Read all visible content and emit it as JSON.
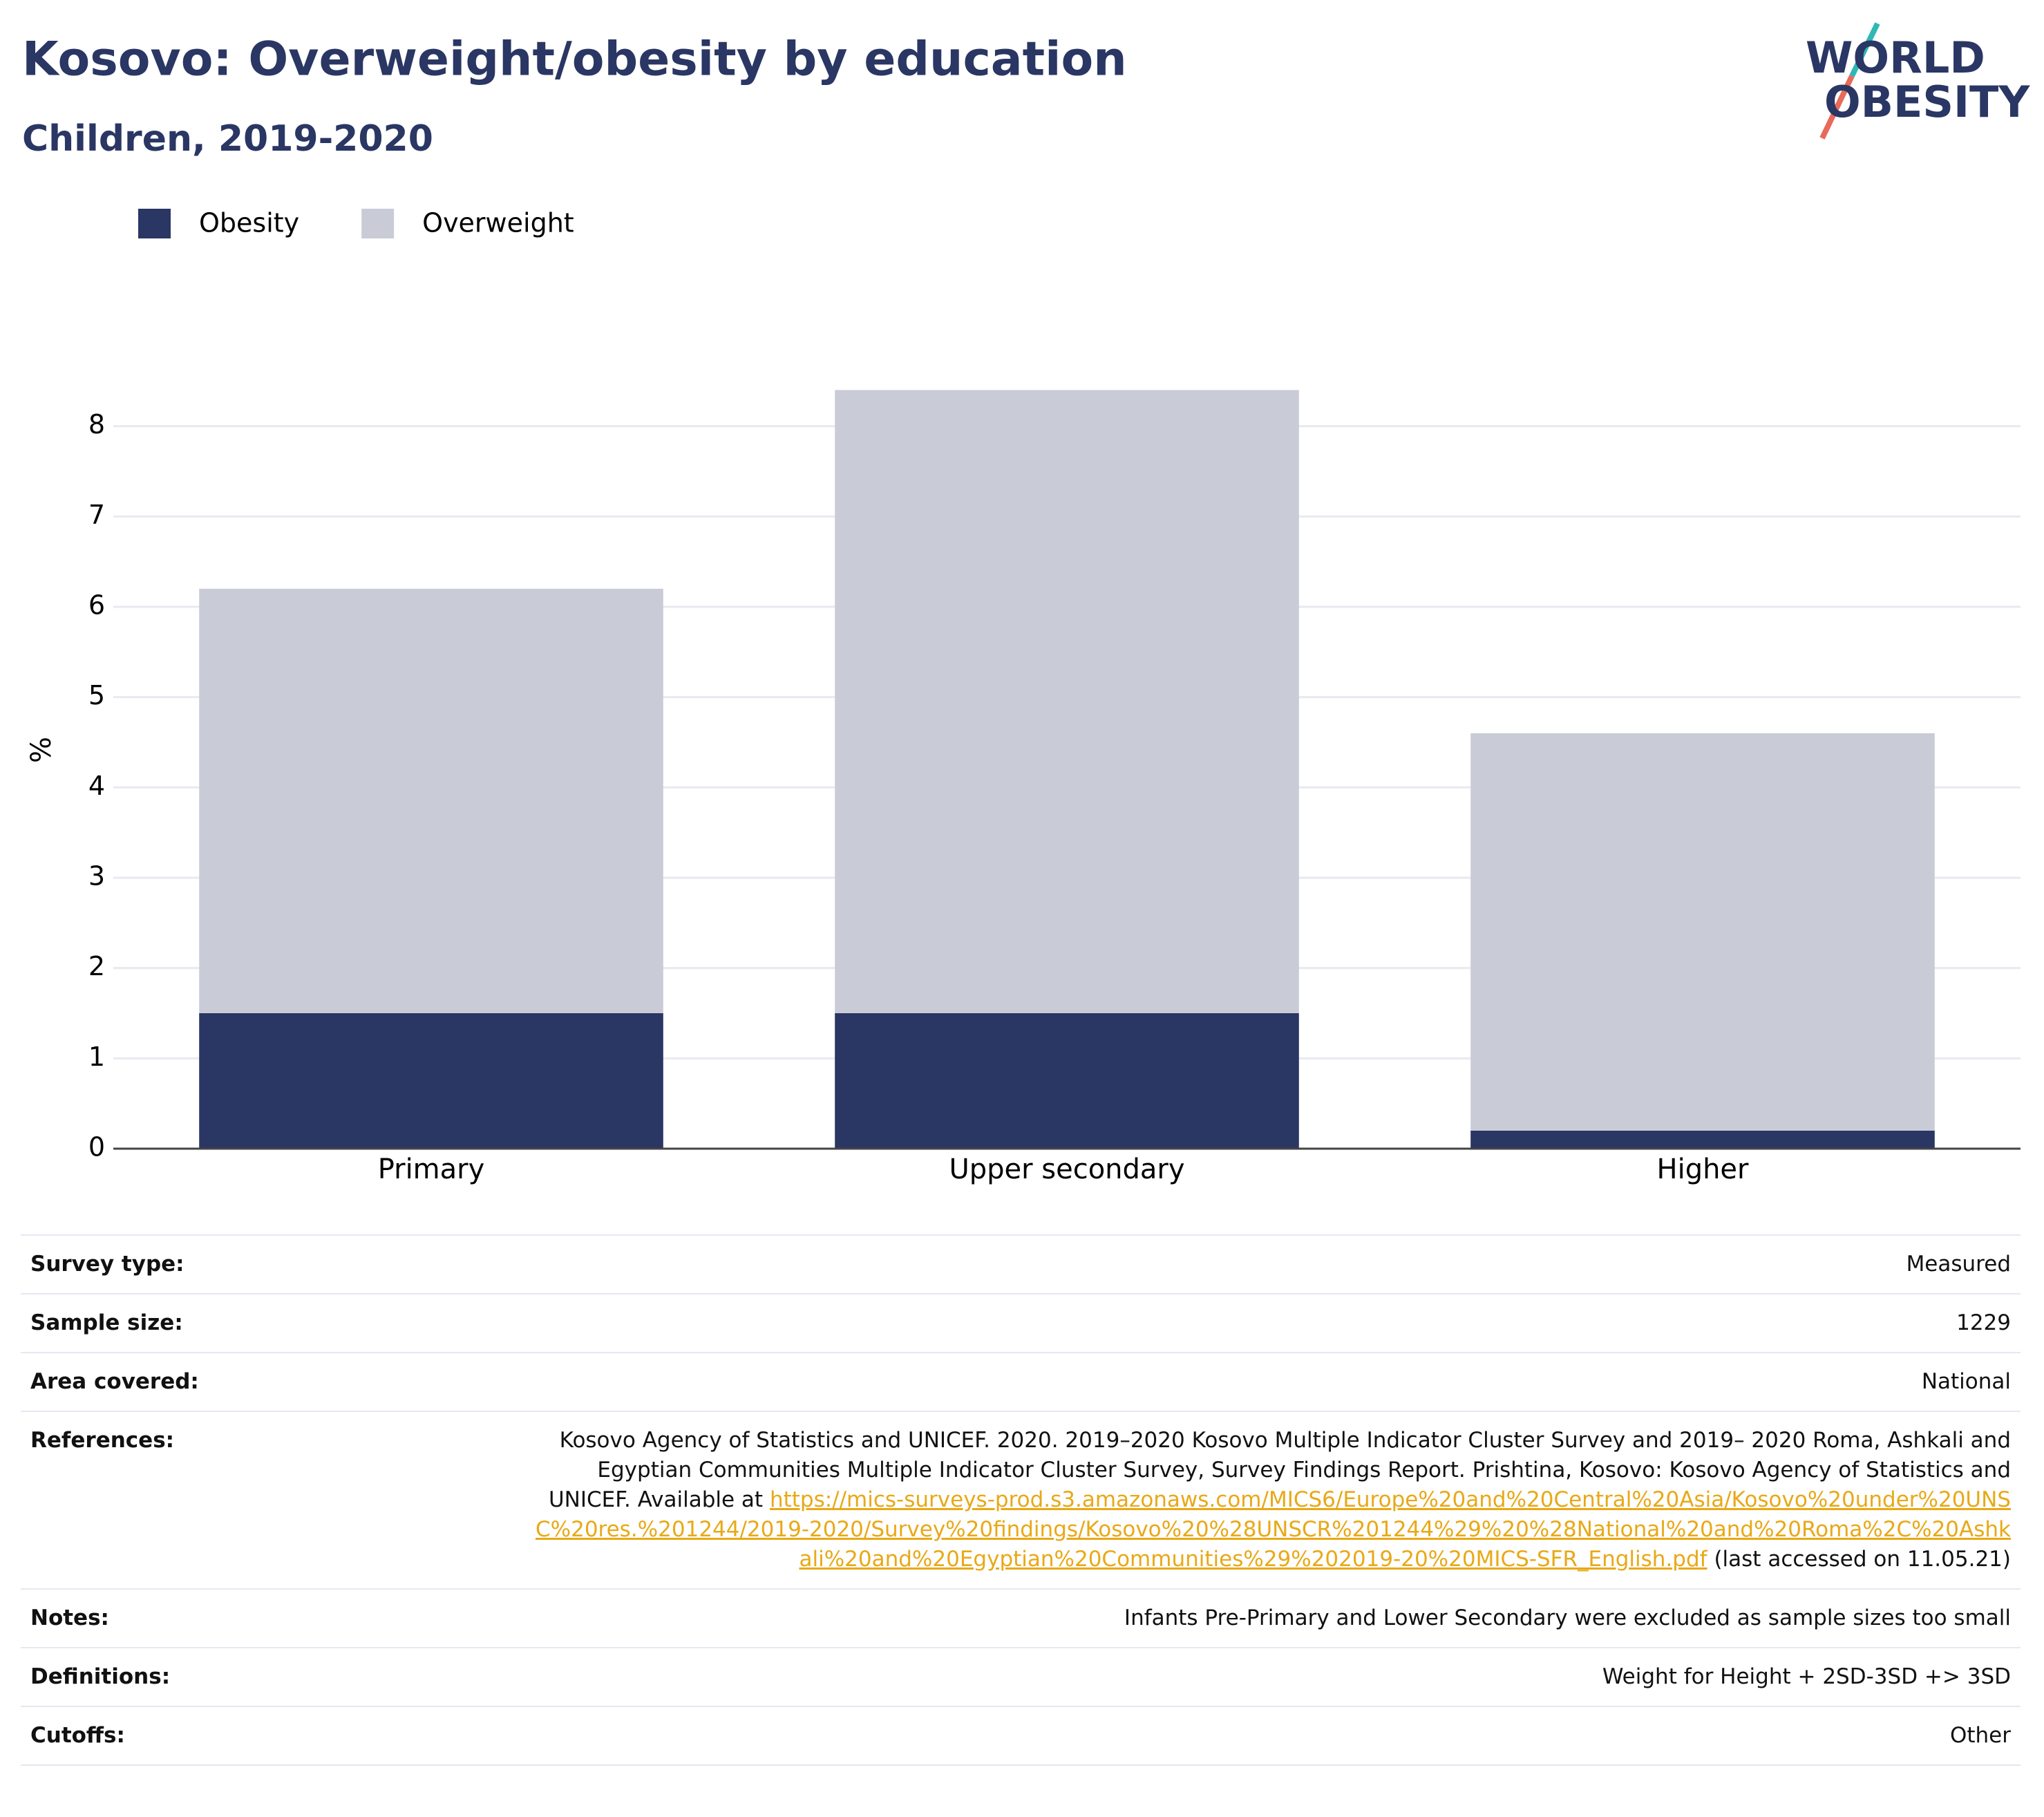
{
  "chart_data": {
    "type": "stacked_bar",
    "title": "Kosovo: Overweight/obesity by education",
    "subtitle": "Children, 2019-2020",
    "y_label": "%",
    "categories": [
      "Primary",
      "Upper secondary",
      "Higher"
    ],
    "series": [
      {
        "name": "Obesity",
        "color": "#2a3663",
        "values": [
          1.5,
          1.5,
          0.2
        ]
      },
      {
        "name": "Overweight",
        "color": "#c9ccd7",
        "values": [
          4.7,
          6.9,
          4.4
        ]
      }
    ],
    "ylim": [
      0,
      8.9
    ],
    "yticks": [
      0,
      1,
      2,
      3,
      4,
      5,
      6,
      7,
      8
    ],
    "grid": true,
    "legend": "top-left"
  },
  "logo": {
    "line1": "WORLD",
    "line2": "OBESITY"
  },
  "table": {
    "rows": [
      [
        "Survey type:",
        "Measured"
      ],
      [
        "Sample size:",
        "1229"
      ],
      [
        "Area covered:",
        "National"
      ],
      [
        "References:",
        {
          "text": "Kosovo Agency of Statistics and UNICEF. 2020. 2019–2020 Kosovo Multiple Indicator Cluster Survey and 2019– 2020 Roma, Ashkali and Egyptian Communities Multiple Indicator Cluster Survey, Survey Findings Report. Prishtina, Kosovo: Kosovo Agency of Statistics and UNICEF. Available at",
          "url": "https://mics-surveys-prod.s3.amazonaws.com/MICS6/Europe%20and%20Central%20Asia/Kosovo%20under%20UNSC%20res.%201244/2019-2020/Survey%20findings/Kosovo%20%28UNSCR%201244%29%20%28National%20and%20Roma%2C%20Ashkali%20and%20Egyptian%20Communities%29%202019-20%20MICS-SFR_English.pdf",
          "after": "(last accessed on 11.05.21)"
        }
      ],
      [
        "Notes:",
        "Infants Pre-Primary and Lower Secondary were excluded as sample sizes too small"
      ],
      [
        "Definitions:",
        "Weight for Height + 2SD-3SD +> 3SD"
      ],
      [
        "Cutoffs:",
        "Other"
      ]
    ]
  }
}
